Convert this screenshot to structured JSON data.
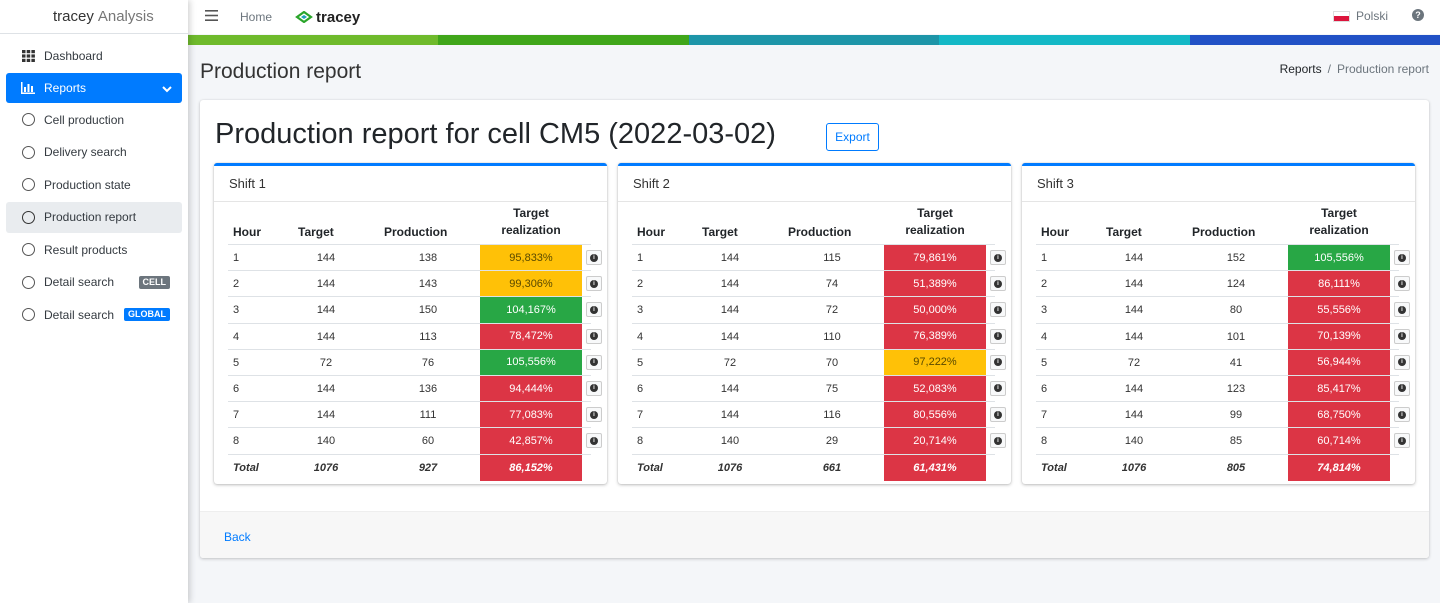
{
  "app": {
    "brand_main": "tracey",
    "brand_sub": "Analysis"
  },
  "sidebar": {
    "items": [
      {
        "label": "Dashboard",
        "icon": "grid-icon"
      },
      {
        "label": "Reports",
        "icon": "bar-chart-icon"
      },
      {
        "label": "Cell production",
        "icon": "circle-icon"
      },
      {
        "label": "Delivery search",
        "icon": "circle-icon"
      },
      {
        "label": "Production state",
        "icon": "circle-icon"
      },
      {
        "label": "Production report",
        "icon": "circle-icon"
      },
      {
        "label": "Result products",
        "icon": "circle-icon"
      },
      {
        "label": "Detail search",
        "icon": "circle-icon",
        "badge": "CELL"
      },
      {
        "label": "Detail search",
        "icon": "circle-icon",
        "badge": "GLOBAL"
      }
    ]
  },
  "topbar": {
    "home": "Home",
    "logo_text": "tracey",
    "language": "Polski"
  },
  "colors": {
    "primary": "#007bff",
    "green": "#28a745",
    "yellow": "#ffc107",
    "red": "#dc3545",
    "bar": [
      "#6fba2c",
      "#40a61a",
      "#1d95a8",
      "#13b8c6",
      "#2151c6"
    ]
  },
  "page": {
    "title": "Production report",
    "breadcrumb": {
      "parent": "Reports",
      "current": "Production report"
    }
  },
  "report": {
    "title": "Production report for cell CM5 (2022-03-02)",
    "export_label": "Export",
    "back_label": "Back",
    "columns": {
      "hour": "Hour",
      "target": "Target",
      "production": "Production",
      "realization_1": "Target",
      "realization_2": "realization"
    },
    "total_label": "Total",
    "shifts": [
      {
        "name": "Shift 1",
        "rows": [
          {
            "hour": "1",
            "target": "144",
            "production": "138",
            "realization": "95,833%",
            "status": "yellow"
          },
          {
            "hour": "2",
            "target": "144",
            "production": "143",
            "realization": "99,306%",
            "status": "yellow"
          },
          {
            "hour": "3",
            "target": "144",
            "production": "150",
            "realization": "104,167%",
            "status": "green"
          },
          {
            "hour": "4",
            "target": "144",
            "production": "113",
            "realization": "78,472%",
            "status": "red"
          },
          {
            "hour": "5",
            "target": "72",
            "production": "76",
            "realization": "105,556%",
            "status": "green"
          },
          {
            "hour": "6",
            "target": "144",
            "production": "136",
            "realization": "94,444%",
            "status": "red"
          },
          {
            "hour": "7",
            "target": "144",
            "production": "111",
            "realization": "77,083%",
            "status": "red"
          },
          {
            "hour": "8",
            "target": "140",
            "production": "60",
            "realization": "42,857%",
            "status": "red"
          }
        ],
        "total": {
          "target": "1076",
          "production": "927",
          "realization": "86,152%",
          "status": "red"
        }
      },
      {
        "name": "Shift 2",
        "rows": [
          {
            "hour": "1",
            "target": "144",
            "production": "115",
            "realization": "79,861%",
            "status": "red"
          },
          {
            "hour": "2",
            "target": "144",
            "production": "74",
            "realization": "51,389%",
            "status": "red"
          },
          {
            "hour": "3",
            "target": "144",
            "production": "72",
            "realization": "50,000%",
            "status": "red"
          },
          {
            "hour": "4",
            "target": "144",
            "production": "110",
            "realization": "76,389%",
            "status": "red"
          },
          {
            "hour": "5",
            "target": "72",
            "production": "70",
            "realization": "97,222%",
            "status": "yellow"
          },
          {
            "hour": "6",
            "target": "144",
            "production": "75",
            "realization": "52,083%",
            "status": "red"
          },
          {
            "hour": "7",
            "target": "144",
            "production": "116",
            "realization": "80,556%",
            "status": "red"
          },
          {
            "hour": "8",
            "target": "140",
            "production": "29",
            "realization": "20,714%",
            "status": "red"
          }
        ],
        "total": {
          "target": "1076",
          "production": "661",
          "realization": "61,431%",
          "status": "red"
        }
      },
      {
        "name": "Shift 3",
        "rows": [
          {
            "hour": "1",
            "target": "144",
            "production": "152",
            "realization": "105,556%",
            "status": "green"
          },
          {
            "hour": "2",
            "target": "144",
            "production": "124",
            "realization": "86,111%",
            "status": "red"
          },
          {
            "hour": "3",
            "target": "144",
            "production": "80",
            "realization": "55,556%",
            "status": "red"
          },
          {
            "hour": "4",
            "target": "144",
            "production": "101",
            "realization": "70,139%",
            "status": "red"
          },
          {
            "hour": "5",
            "target": "72",
            "production": "41",
            "realization": "56,944%",
            "status": "red"
          },
          {
            "hour": "6",
            "target": "144",
            "production": "123",
            "realization": "85,417%",
            "status": "red"
          },
          {
            "hour": "7",
            "target": "144",
            "production": "99",
            "realization": "68,750%",
            "status": "red"
          },
          {
            "hour": "8",
            "target": "140",
            "production": "85",
            "realization": "60,714%",
            "status": "red"
          }
        ],
        "total": {
          "target": "1076",
          "production": "805",
          "realization": "74,814%",
          "status": "red"
        }
      }
    ]
  }
}
